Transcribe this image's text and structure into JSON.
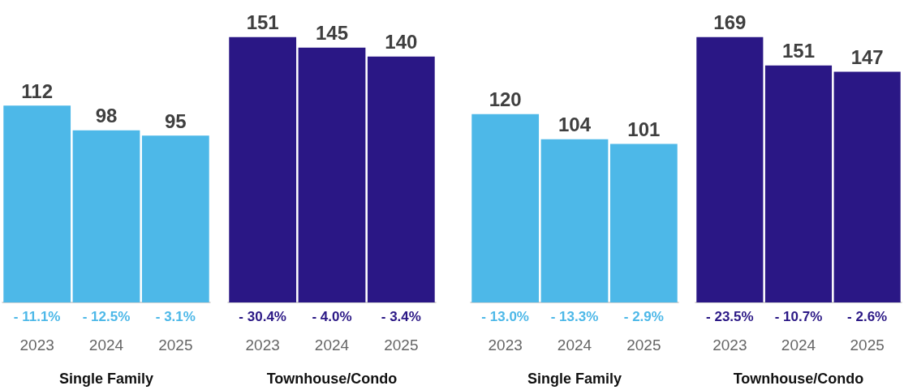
{
  "chart_data": [
    {
      "type": "bar",
      "xlabel": "Single Family",
      "categories": [
        "2023",
        "2024",
        "2025"
      ],
      "values": [
        112,
        98,
        95
      ],
      "color": "#4db8e8",
      "data_labels": true,
      "annotations": [
        {
          "text": "- 11.1%",
          "x": "2023",
          "y": 0
        },
        {
          "text": "- 12.5%",
          "x": "2024",
          "y": 0
        },
        {
          "text": "- 3.1%",
          "x": "2025",
          "y": 0
        }
      ]
    },
    {
      "type": "bar",
      "xlabel": "Townhouse/Condo",
      "categories": [
        "2023",
        "2024",
        "2025"
      ],
      "values": [
        151,
        145,
        140
      ],
      "color": "#2a1785",
      "data_labels": true,
      "annotations": [
        {
          "text": "- 30.4%",
          "x": "2023",
          "y": 0
        },
        {
          "text": "- 4.0%",
          "x": "2024",
          "y": 0
        },
        {
          "text": "- 3.4%",
          "x": "2025",
          "y": 0
        }
      ]
    },
    {
      "type": "bar",
      "xlabel": "Single Family",
      "categories": [
        "2023",
        "2024",
        "2025"
      ],
      "values": [
        120,
        104,
        101
      ],
      "color": "#4db8e8",
      "data_labels": true,
      "annotations": [
        {
          "text": "- 13.0%",
          "x": "2023",
          "y": 0
        },
        {
          "text": "- 13.3%",
          "x": "2024",
          "y": 0
        },
        {
          "text": "- 2.9%",
          "x": "2025",
          "y": 0
        }
      ]
    },
    {
      "type": "bar",
      "xlabel": "Townhouse/Condo",
      "categories": [
        "2023",
        "2024",
        "2025"
      ],
      "values": [
        169,
        151,
        147
      ],
      "color": "#2a1785",
      "data_labels": true,
      "annotations": [
        {
          "text": "- 23.5%",
          "x": "2023",
          "y": 0
        },
        {
          "text": "- 10.7%",
          "x": "2024",
          "y": 0
        },
        {
          "text": "- 2.6%",
          "x": "2025",
          "y": 0
        }
      ]
    }
  ]
}
